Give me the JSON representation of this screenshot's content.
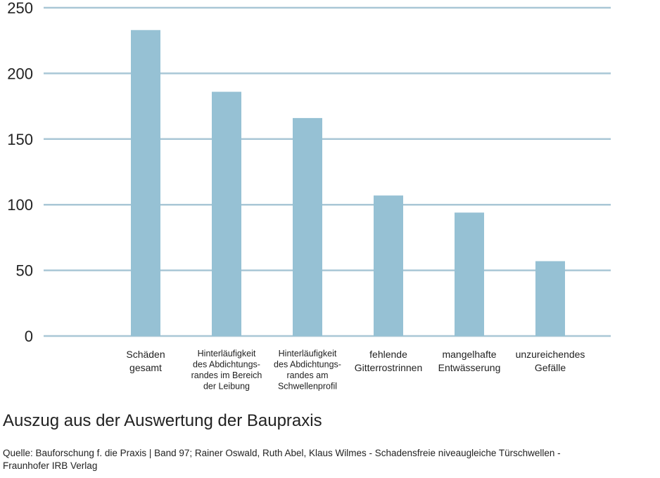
{
  "chart_data": {
    "type": "bar",
    "categories": [
      [
        "Schäden",
        "gesamt"
      ],
      [
        "Hinterläufigkeit",
        "des Abdichtungs-",
        "randes im Bereich",
        "der Leibung"
      ],
      [
        "Hinterläufigkeit",
        "des Abdichtungs-",
        "randes am",
        "Schwellenprofil"
      ],
      [
        "fehlende",
        "Gitterrostrinnen"
      ],
      [
        "mangelhafte",
        "Entwässerung"
      ],
      [
        "unzureichendes",
        "Gefälle"
      ]
    ],
    "values": [
      233,
      186,
      166,
      107,
      94,
      57
    ],
    "ylim": [
      0,
      250
    ],
    "yticks": [
      0,
      50,
      100,
      150,
      200,
      250
    ],
    "grid": true,
    "bar_color": "#96c1d4",
    "grid_color": "#a9c7d6"
  },
  "caption": "Auszug aus der Auswertung der Baupraxis",
  "source_lines": [
    "Quelle: Bauforschung f. die Praxis | Band 97; Rainer Oswald, Ruth Abel, Klaus Wilmes - Schadensfreie niveaugleiche Türschwellen -",
    "Fraunhofer IRB Verlag"
  ]
}
